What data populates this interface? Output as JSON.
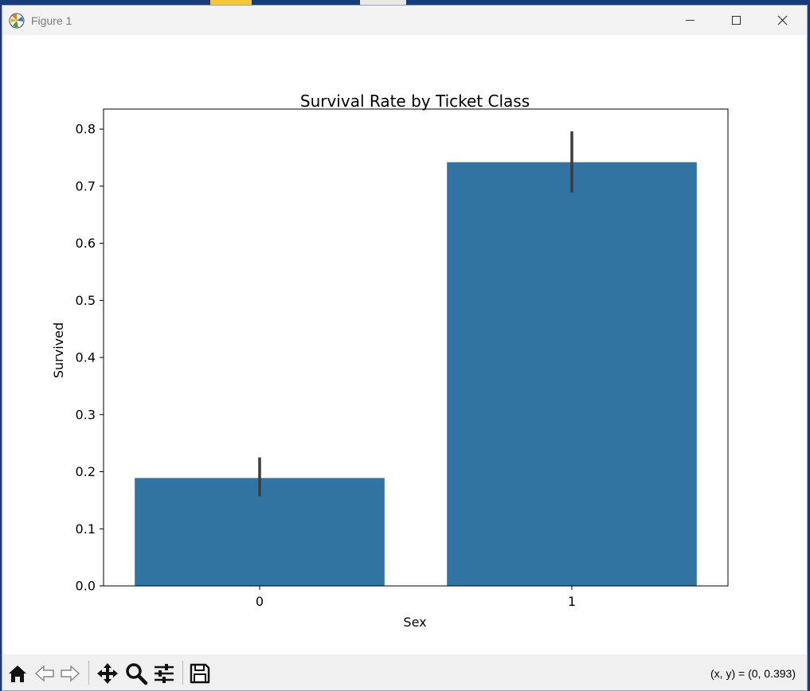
{
  "window": {
    "title": "Figure 1",
    "controls": [
      "minimize",
      "maximize",
      "close"
    ]
  },
  "toolbar": {
    "buttons": [
      {
        "name": "home-icon"
      },
      {
        "name": "back-arrow-icon"
      },
      {
        "name": "forward-arrow-icon"
      },
      {
        "name": "pan-icon"
      },
      {
        "name": "zoom-icon"
      },
      {
        "name": "configure-subplots-icon"
      },
      {
        "name": "save-icon"
      }
    ],
    "coordinate_readout": "(x, y) = (0, 0.393)"
  },
  "colors": {
    "bar": "#3274a1",
    "errorbar": "#3d3d3d",
    "titlebar": "#f3f3f3",
    "toolbar": "#f0f0f0"
  },
  "chart_data": {
    "type": "bar",
    "title": "Survival Rate by Ticket Class",
    "xlabel": "Sex",
    "ylabel": "Survived",
    "categories": [
      "0",
      "1"
    ],
    "values": [
      0.189,
      0.742
    ],
    "error_low": [
      0.157,
      0.689
    ],
    "error_high": [
      0.225,
      0.796
    ],
    "ylim": [
      0,
      0.835
    ],
    "yticks": [
      "0.0",
      "0.1",
      "0.2",
      "0.3",
      "0.4",
      "0.5",
      "0.6",
      "0.7",
      "0.8"
    ],
    "grid": false,
    "legend": "none"
  }
}
